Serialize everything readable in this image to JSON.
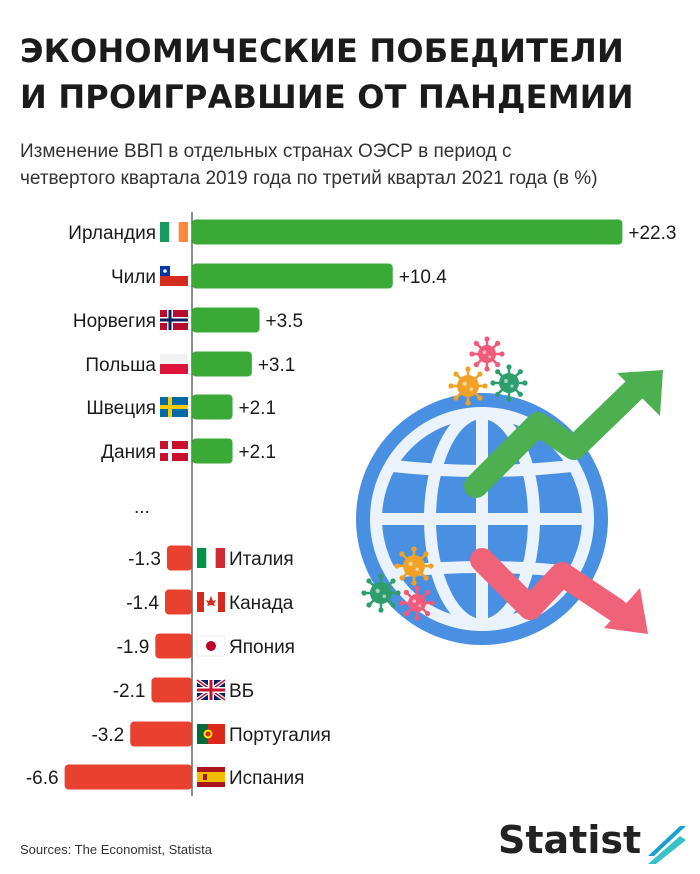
{
  "header": {
    "title": "ЭКОНОМИЧЕСКИЕ ПОБЕДИТЕЛИ\nИ ПРОИГРАВШИЕ ОТ ПАНДЕМИИ",
    "subtitle_line1": "Изменение ВВП в отдельных странах ОЭСР в период с",
    "subtitle_line2": "четвертого квартала 2019 года по третий квартал 2021 года (в %)"
  },
  "footer": {
    "source": "Sources: The Economist, Statista",
    "logo": "Statist"
  },
  "chart_data": {
    "type": "bar",
    "orientation": "horizontal",
    "title": "ЭКОНОМИЧЕСКИЕ ПОБЕДИТЕЛИ И ПРОИГРАВШИЕ ОТ ПАНДЕМИИ",
    "gap_label": "...",
    "colors": {
      "positive": "#3aa935",
      "negative": "#e8412f",
      "axis": "#444444"
    },
    "winners": [
      {
        "country": "Ирландия",
        "value": 22.3,
        "label": "+22.3",
        "flag": "ireland-flag"
      },
      {
        "country": "Чили",
        "value": 10.4,
        "label": "+10.4",
        "flag": "chile-flag"
      },
      {
        "country": "Норвегия",
        "value": 3.5,
        "label": "+3.5",
        "flag": "norway-flag"
      },
      {
        "country": "Польша",
        "value": 3.1,
        "label": "+3.1",
        "flag": "poland-flag"
      },
      {
        "country": "Швеция",
        "value": 2.1,
        "label": "+2.1",
        "flag": "sweden-flag"
      },
      {
        "country": "Дания",
        "value": 2.1,
        "label": "+2.1",
        "flag": "denmark-flag"
      }
    ],
    "losers": [
      {
        "country": "Италия",
        "value": -1.3,
        "label": "-1.3",
        "flag": "italy-flag"
      },
      {
        "country": "Канада",
        "value": -1.4,
        "label": "-1.4",
        "flag": "canada-flag"
      },
      {
        "country": "Япония",
        "value": -1.9,
        "label": "-1.9",
        "flag": "japan-flag"
      },
      {
        "country": "ВБ",
        "value": -2.1,
        "label": "-2.1",
        "flag": "uk-flag"
      },
      {
        "country": "Португалия",
        "value": -3.2,
        "label": "-3.2",
        "flag": "portugal-flag"
      },
      {
        "country": "Испания",
        "value": -6.6,
        "label": "-6.6",
        "flag": "spain-flag"
      }
    ]
  },
  "illustration": {
    "globe_color": "#4a90e2",
    "up_arrow_color": "#4cb050",
    "down_arrow_color": "#f06277",
    "icons": [
      "globe-icon",
      "up-trend-arrow-icon",
      "down-trend-arrow-icon",
      "virus-icon"
    ]
  }
}
